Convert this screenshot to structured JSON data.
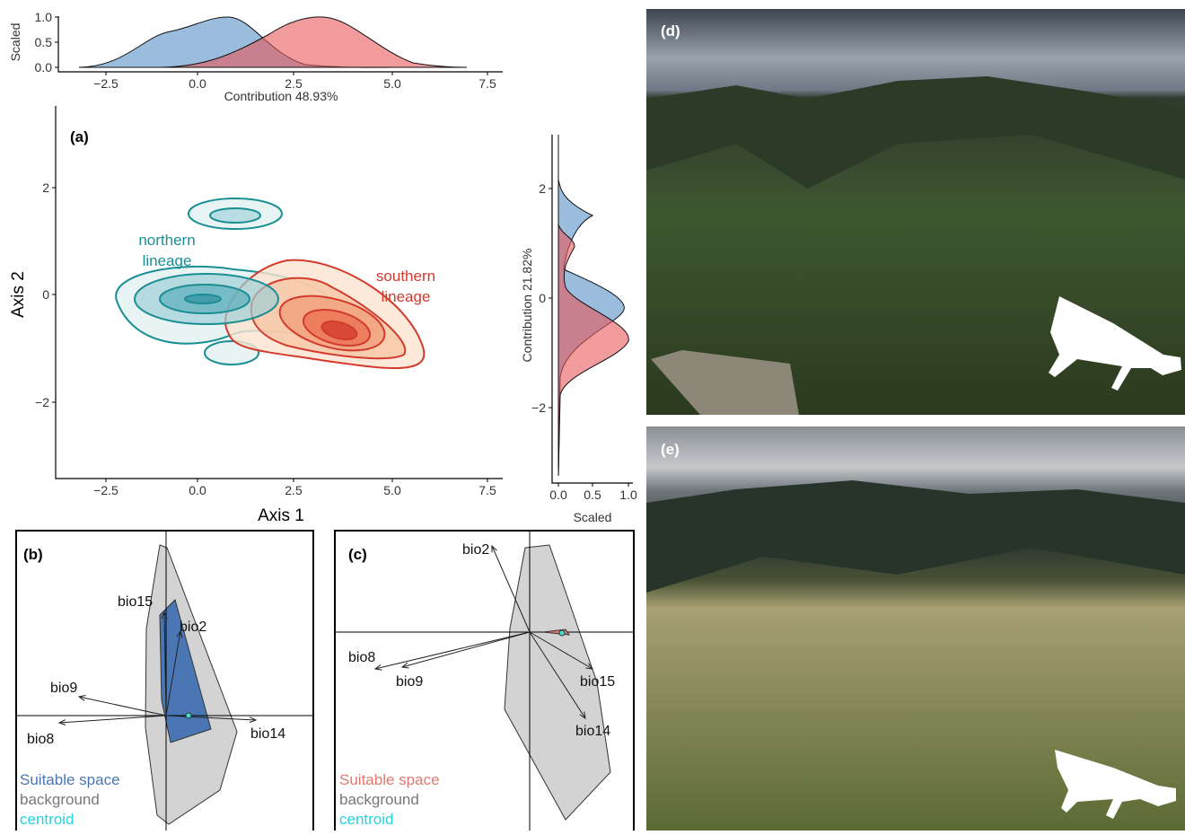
{
  "panel_a": {
    "label": "(a)",
    "top_density": {
      "y_title": "Scaled",
      "x_title": "Contribution 48.93%",
      "yticks": [
        "0.0",
        "0.5",
        "1.0"
      ],
      "xticks": [
        "−2.5",
        "0.0",
        "2.5",
        "5.0",
        "7.5"
      ]
    },
    "main": {
      "x_title": "Axis 1",
      "y_title": "Axis 2",
      "xticks": [
        "−2.5",
        "0.0",
        "2.5",
        "5.0",
        "7.5"
      ],
      "yticks": [
        "−2",
        "0",
        "2"
      ],
      "northern": [
        "northern",
        "lineage"
      ],
      "southern": [
        "southern",
        "lineage"
      ]
    },
    "right_density": {
      "y_title": "Contribution 21.82%",
      "x_title": "Scaled",
      "yticks": [
        "−2",
        "0",
        "2"
      ],
      "xticks": [
        "0.0",
        "0.5",
        "1.0"
      ]
    }
  },
  "panel_b": {
    "label": "(b)",
    "vectors": [
      "bio15",
      "bio2",
      "bio9",
      "bio8",
      "bio14"
    ],
    "legend": [
      "Suitable space",
      "background",
      "centroid"
    ]
  },
  "panel_c": {
    "label": "(c)",
    "vectors": [
      "bio2",
      "bio8",
      "bio9",
      "bio15",
      "bio14"
    ],
    "legend": [
      "Suitable space",
      "background",
      "centroid"
    ]
  },
  "panel_d": {
    "label": "(d)"
  },
  "panel_e": {
    "label": "(e)"
  }
}
